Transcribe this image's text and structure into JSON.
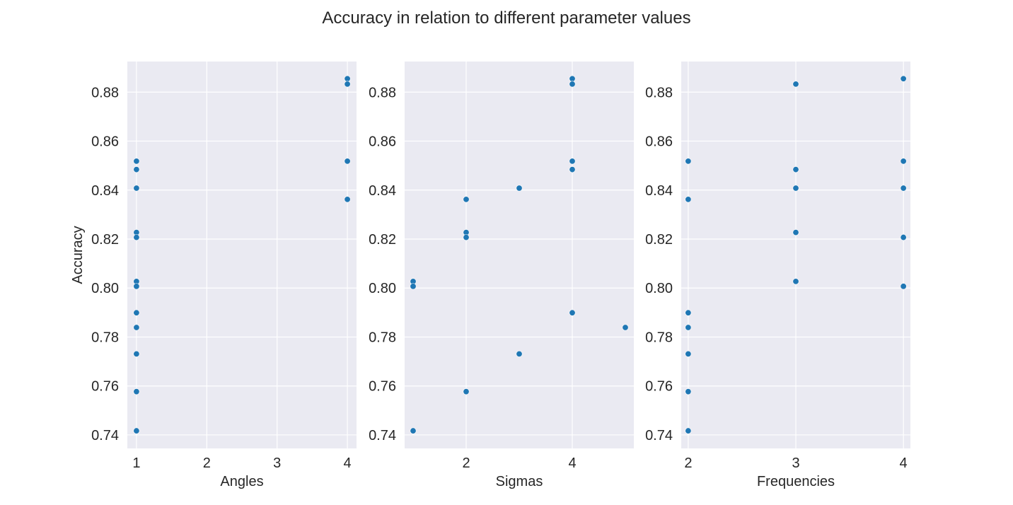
{
  "title": "Accuracy in relation to different parameter values",
  "colors": {
    "background": "#eaeaf2",
    "grid": "#ffffff",
    "point": "#1f77b4"
  },
  "chart_data": [
    {
      "type": "scatter",
      "xlabel": "Angles",
      "ylabel": "Accuracy",
      "xlim": [
        0.87,
        4.13
      ],
      "ylim": [
        0.7345,
        0.8925
      ],
      "xticks": [
        1,
        2,
        3,
        4
      ],
      "yticks": [
        0.74,
        0.76,
        0.78,
        0.8,
        0.82,
        0.84,
        0.86,
        0.88
      ],
      "ytick_labels": [
        "0.74",
        "0.76",
        "0.78",
        "0.80",
        "0.82",
        "0.84",
        "0.86",
        "0.88"
      ],
      "grid": true,
      "points": [
        {
          "x": 1,
          "y": 0.8518
        },
        {
          "x": 1,
          "y": 0.8484
        },
        {
          "x": 1,
          "y": 0.8408
        },
        {
          "x": 1,
          "y": 0.8227
        },
        {
          "x": 1,
          "y": 0.8207
        },
        {
          "x": 1,
          "y": 0.8027
        },
        {
          "x": 1,
          "y": 0.8007
        },
        {
          "x": 1,
          "y": 0.7899
        },
        {
          "x": 1,
          "y": 0.7839
        },
        {
          "x": 1,
          "y": 0.7731
        },
        {
          "x": 1,
          "y": 0.7577
        },
        {
          "x": 1,
          "y": 0.7417
        },
        {
          "x": 4,
          "y": 0.8855
        },
        {
          "x": 4,
          "y": 0.8833
        },
        {
          "x": 4,
          "y": 0.8518
        },
        {
          "x": 4,
          "y": 0.8362
        }
      ]
    },
    {
      "type": "scatter",
      "xlabel": "Sigmas",
      "ylabel": "",
      "xlim": [
        0.84,
        5.16
      ],
      "ylim": [
        0.7345,
        0.8925
      ],
      "xticks": [
        2,
        4
      ],
      "yticks": [
        0.74,
        0.76,
        0.78,
        0.8,
        0.82,
        0.84,
        0.86,
        0.88
      ],
      "ytick_labels": [
        "0.74",
        "0.76",
        "0.78",
        "0.80",
        "0.82",
        "0.84",
        "0.86",
        "0.88"
      ],
      "grid": true,
      "points": [
        {
          "x": 1,
          "y": 0.8027
        },
        {
          "x": 1,
          "y": 0.8007
        },
        {
          "x": 1,
          "y": 0.7417
        },
        {
          "x": 2,
          "y": 0.8362
        },
        {
          "x": 2,
          "y": 0.8227
        },
        {
          "x": 2,
          "y": 0.8207
        },
        {
          "x": 2,
          "y": 0.7577
        },
        {
          "x": 3,
          "y": 0.8408
        },
        {
          "x": 3,
          "y": 0.7731
        },
        {
          "x": 4,
          "y": 0.8855
        },
        {
          "x": 4,
          "y": 0.8833
        },
        {
          "x": 4,
          "y": 0.8518
        },
        {
          "x": 4,
          "y": 0.8484
        },
        {
          "x": 4,
          "y": 0.7899
        },
        {
          "x": 5,
          "y": 0.7839
        }
      ]
    },
    {
      "type": "scatter",
      "xlabel": "Frequencies",
      "ylabel": "",
      "xlim": [
        1.935,
        4.065
      ],
      "ylim": [
        0.7345,
        0.8925
      ],
      "xticks": [
        2,
        3,
        4
      ],
      "yticks": [
        0.74,
        0.76,
        0.78,
        0.8,
        0.82,
        0.84,
        0.86,
        0.88
      ],
      "ytick_labels": [
        "0.74",
        "0.76",
        "0.78",
        "0.80",
        "0.82",
        "0.84",
        "0.86",
        "0.88"
      ],
      "grid": true,
      "points": [
        {
          "x": 2,
          "y": 0.8518
        },
        {
          "x": 2,
          "y": 0.8362
        },
        {
          "x": 2,
          "y": 0.7899
        },
        {
          "x": 2,
          "y": 0.7839
        },
        {
          "x": 2,
          "y": 0.7731
        },
        {
          "x": 2,
          "y": 0.7577
        },
        {
          "x": 2,
          "y": 0.7417
        },
        {
          "x": 3,
          "y": 0.8833
        },
        {
          "x": 3,
          "y": 0.8484
        },
        {
          "x": 3,
          "y": 0.8408
        },
        {
          "x": 3,
          "y": 0.8227
        },
        {
          "x": 3,
          "y": 0.8027
        },
        {
          "x": 4,
          "y": 0.8855
        },
        {
          "x": 4,
          "y": 0.8518
        },
        {
          "x": 4,
          "y": 0.8408
        },
        {
          "x": 4,
          "y": 0.8207
        },
        {
          "x": 4,
          "y": 0.8007
        }
      ]
    }
  ]
}
